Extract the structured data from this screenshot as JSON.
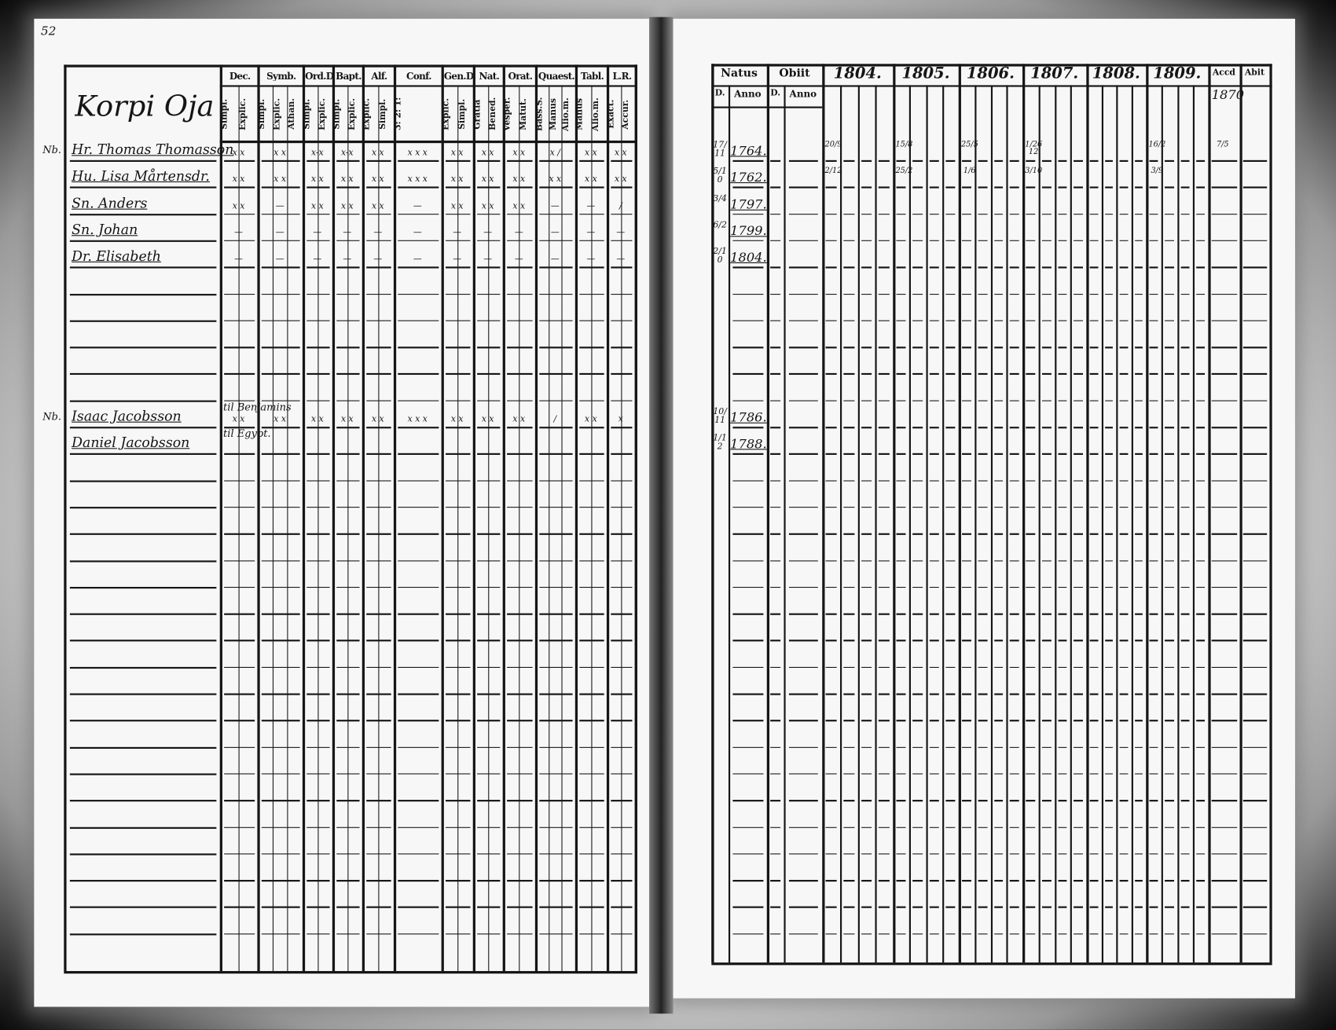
{
  "page_number": "52",
  "left_page": {
    "village": "Korpi Oja",
    "headers": [
      {
        "label": "Dec.",
        "subs": [
          "Simpl.",
          "Explic."
        ]
      },
      {
        "label": "Symb.",
        "subs": [
          "Simpl.",
          "Explic.",
          "Athan."
        ]
      },
      {
        "label": "Ord.D",
        "subs": [
          "Simpl.",
          "Explic."
        ]
      },
      {
        "label": "Bapt.",
        "subs": [
          "Simpl.",
          "Explic."
        ]
      },
      {
        "label": "Alf.",
        "subs": [
          "Explic.",
          "Simpl."
        ]
      },
      {
        "label": "Conf.",
        "subs": [
          "3: 2: 1:"
        ]
      },
      {
        "label": "Gen.D",
        "subs": [
          "Explic.",
          "Simpl."
        ]
      },
      {
        "label": "Nat.",
        "subs": [
          "Gratia",
          "Bened."
        ]
      },
      {
        "label": "Orat.",
        "subs": [
          "Vesper.",
          "Matut."
        ]
      },
      {
        "label": "Quaest.",
        "subs": [
          "Bass.S.",
          "Manus",
          "Alio.m."
        ]
      },
      {
        "label": "Tabl.",
        "subs": [
          "Manus",
          "Alio.m."
        ]
      },
      {
        "label": "L.R.",
        "subs": [
          "Exact.",
          "Accur."
        ]
      }
    ],
    "persons": [
      {
        "row": 0,
        "num": "Nb.",
        "name": "Hr. Thomas Thomasson",
        "marks": [
          "x x",
          "x x",
          "x-x",
          "x-x",
          "x x",
          "x x x",
          "x x",
          "x x",
          "x x",
          "x /",
          "x x",
          "x x"
        ]
      },
      {
        "row": 1,
        "num": "",
        "name": "Hu. Lisa Mårtensdr.",
        "marks": [
          "x x",
          "x x",
          "x x",
          "x x",
          "x x",
          "x x x",
          "x x",
          "x x",
          "x x",
          "x x",
          "x x",
          "x x"
        ]
      },
      {
        "row": 2,
        "num": "",
        "name": "Sn. Anders",
        "marks": [
          "x x",
          "—",
          "x x",
          "x x",
          "x x",
          "—",
          "x x",
          "x x",
          "x x",
          "—",
          "—",
          "/"
        ]
      },
      {
        "row": 3,
        "num": "",
        "name": "Sn. Johan",
        "marks": [
          "—",
          "—",
          "—",
          "—",
          "—",
          "—",
          "—",
          "—",
          "—",
          "—",
          "—",
          "—"
        ]
      },
      {
        "row": 4,
        "num": "",
        "name": "Dr. Elisabeth",
        "marks": [
          "—",
          "—",
          "—",
          "—",
          "—",
          "—",
          "—",
          "—",
          "—",
          "—",
          "—",
          "—"
        ]
      },
      {
        "row": 10,
        "num": "Nb.",
        "name": "Isaac Jacobsson",
        "note": "til Benjamins",
        "marks": [
          "x x",
          "x x",
          "x x",
          "x x",
          "x x",
          "x x x",
          "x x",
          "x x",
          "x x",
          "/",
          "x x",
          "x"
        ]
      },
      {
        "row": 11,
        "num": "",
        "name": "Daniel Jacobsson",
        "note": "til Egypt.",
        "marks": [
          "",
          "",
          "",
          "",
          "",
          "",
          "",
          "",
          "",
          "",
          "",
          ""
        ]
      }
    ]
  },
  "right_page": {
    "headers": {
      "natus": "Natus",
      "natus_subs": [
        "D.",
        "Anno"
      ],
      "obiit": "Obiit",
      "obiit_subs": [
        "D.",
        "Anno"
      ],
      "years": [
        "1804.",
        "1805.",
        "1806.",
        "1807.",
        "1808.",
        "1809."
      ],
      "accd": "Accd",
      "abit": "Abit"
    },
    "accd_top": "1870",
    "entries": [
      {
        "row": 0,
        "natus_d": "17/11",
        "natus_anno": "1764.",
        "years": [
          "20/9",
          "15/8",
          "25/5",
          "1/26 12",
          "",
          "16/2"
        ],
        "accd": "7/5"
      },
      {
        "row": 1,
        "natus_d": "5/10",
        "natus_anno": "1762.",
        "years": [
          "2/12",
          "25/2",
          "1/6",
          "3/10",
          "",
          "3/9"
        ],
        "accd": ""
      },
      {
        "row": 2,
        "natus_d": "3/4",
        "natus_anno": "1797.",
        "years": [
          "",
          "",
          "",
          "",
          "",
          ""
        ],
        "accd": ""
      },
      {
        "row": 3,
        "natus_d": "6/2",
        "natus_anno": "1799.",
        "years": [
          "",
          "",
          "",
          "",
          "",
          ""
        ],
        "accd": ""
      },
      {
        "row": 4,
        "natus_d": "2/10",
        "natus_anno": "1804.",
        "years": [
          "",
          "",
          "",
          "",
          "",
          ""
        ],
        "accd": ""
      },
      {
        "row": 10,
        "natus_d": "10/11",
        "natus_anno": "1786.",
        "years": [
          "",
          "",
          "",
          "",
          "",
          ""
        ],
        "accd": ""
      },
      {
        "row": 11,
        "natus_d": "1/12",
        "natus_anno": "1788.",
        "years": [
          "",
          "",
          "",
          "",
          "",
          ""
        ],
        "accd": ""
      }
    ]
  }
}
